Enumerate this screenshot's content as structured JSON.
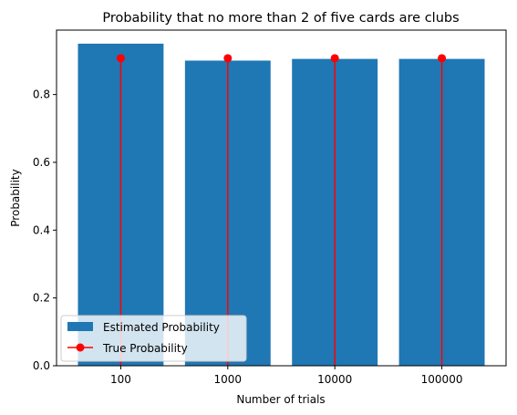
{
  "chart_data": {
    "type": "bar",
    "title": "Probability that no more than 2 of five cards are clubs",
    "xlabel": "Number of trials",
    "ylabel": "Probability",
    "categories": [
      "100",
      "1000",
      "10000",
      "100000"
    ],
    "ylim": [
      0,
      0.99
    ],
    "yticks": [
      0.0,
      0.2,
      0.4,
      0.6,
      0.8
    ],
    "ytick_labels": [
      "0.0",
      "0.2",
      "0.4",
      "0.6",
      "0.8"
    ],
    "grid": false,
    "legend_position": "lower-left",
    "series": [
      {
        "name": "Estimated Probability",
        "kind": "bar",
        "color": "#1f77b4",
        "values": [
          0.95,
          0.9,
          0.905,
          0.905
        ]
      },
      {
        "name": "True Probability",
        "kind": "stem",
        "color": "#ff0000",
        "values": [
          0.907,
          0.907,
          0.907,
          0.907
        ]
      }
    ]
  }
}
